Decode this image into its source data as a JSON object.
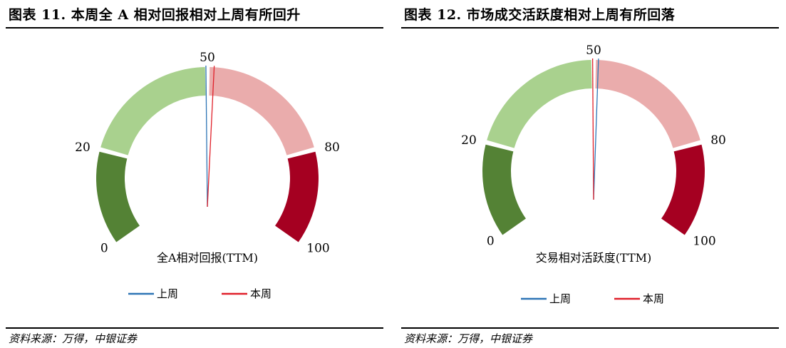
{
  "panels": [
    {
      "title": "图表 11. 本周全 A 相对回报相对上周有所回升",
      "source": "资料来源：万得，中银证券",
      "chart_data": {
        "type": "gauge",
        "xlabel": "全A相对回报(TTM)",
        "range": [
          0,
          100
        ],
        "bands": [
          {
            "from": 0,
            "to": 20,
            "color": "#548235"
          },
          {
            "from": 20,
            "to": 50,
            "color": "#a9d18e"
          },
          {
            "from": 50,
            "to": 80,
            "color": "#eaacac"
          },
          {
            "from": 80,
            "to": 100,
            "color": "#a50021"
          }
        ],
        "tick_labels": [
          {
            "label": "0",
            "value": 0
          },
          {
            "label": "20",
            "value": 20
          },
          {
            "label": "50",
            "value": 50
          },
          {
            "label": "80",
            "value": 80
          },
          {
            "label": "100",
            "value": 100
          }
        ],
        "series": [
          {
            "name": "上周",
            "value": 49.7,
            "color": "#2e75b6"
          },
          {
            "name": "本周",
            "value": 51.4,
            "color": "#e0202a"
          }
        ],
        "legend": "bottom"
      }
    },
    {
      "title": "图表 12. 市场成交活跃度相对上周有所回落",
      "source": "资料来源：万得，中银证券",
      "chart_data": {
        "type": "gauge",
        "xlabel": "交易相对活跃度(TTM)",
        "range": [
          0,
          100
        ],
        "bands": [
          {
            "from": 0,
            "to": 20,
            "color": "#548235"
          },
          {
            "from": 20,
            "to": 50,
            "color": "#a9d18e"
          },
          {
            "from": 50,
            "to": 80,
            "color": "#eaacac"
          },
          {
            "from": 80,
            "to": 100,
            "color": "#a50021"
          }
        ],
        "tick_labels": [
          {
            "label": "0",
            "value": 0
          },
          {
            "label": "20",
            "value": 20
          },
          {
            "label": "50",
            "value": 50
          },
          {
            "label": "80",
            "value": 80
          },
          {
            "label": "100",
            "value": 100
          }
        ],
        "series": [
          {
            "name": "上周",
            "value": 51.0,
            "color": "#2e75b6"
          },
          {
            "name": "本周",
            "value": 49.8,
            "color": "#e0202a"
          }
        ],
        "legend": "bottom"
      }
    }
  ]
}
